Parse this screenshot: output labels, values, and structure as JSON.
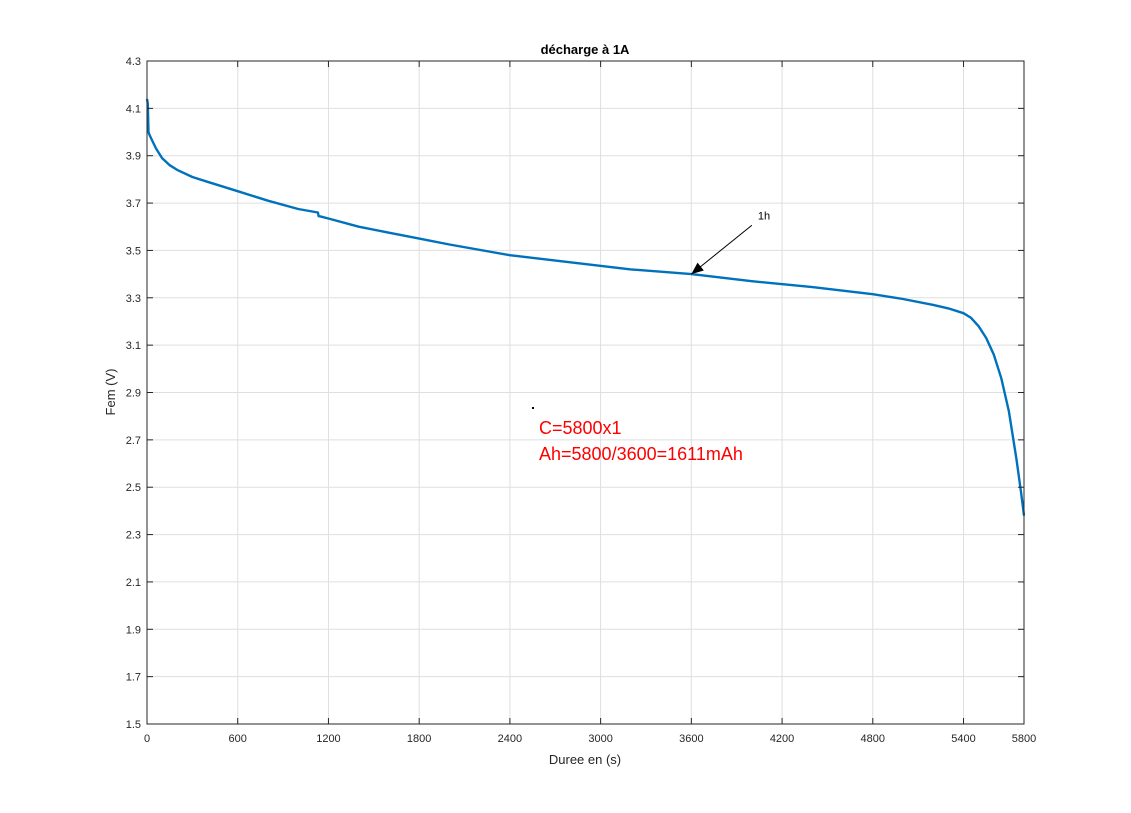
{
  "chart_data": {
    "type": "line",
    "title": "décharge à 1A",
    "xlabel": "Duree en (s)",
    "ylabel": "Fem (V)",
    "xlim": [
      0,
      5800
    ],
    "ylim": [
      1.5,
      4.3
    ],
    "xticks": [
      0,
      600,
      1200,
      1800,
      2400,
      3000,
      3600,
      4200,
      4800,
      5400,
      5800
    ],
    "yticks": [
      1.5,
      1.7,
      1.9,
      2.1,
      2.3,
      2.5,
      2.7,
      2.9,
      3.1,
      3.3,
      3.5,
      3.7,
      3.9,
      4.1,
      4.3
    ],
    "grid": true,
    "series": [
      {
        "color": "#0072bd",
        "x": [
          0,
          5,
          10,
          15,
          30,
          60,
          100,
          150,
          200,
          300,
          400,
          600,
          800,
          1000,
          1130,
          1135,
          1150,
          1200,
          1400,
          1600,
          1800,
          2000,
          2400,
          2800,
          3200,
          3600,
          4000,
          4400,
          4800,
          5000,
          5200,
          5300,
          5400,
          5450,
          5500,
          5550,
          5600,
          5650,
          5700,
          5750,
          5780,
          5800
        ],
        "y": [
          4.14,
          4.12,
          4.0,
          3.99,
          3.97,
          3.93,
          3.89,
          3.86,
          3.84,
          3.81,
          3.79,
          3.75,
          3.71,
          3.675,
          3.66,
          3.645,
          3.643,
          3.635,
          3.6,
          3.575,
          3.55,
          3.525,
          3.48,
          3.45,
          3.42,
          3.4,
          3.37,
          3.345,
          3.315,
          3.295,
          3.27,
          3.255,
          3.235,
          3.215,
          3.18,
          3.13,
          3.06,
          2.96,
          2.82,
          2.62,
          2.48,
          2.38
        ]
      }
    ],
    "annotations": [
      {
        "text": "1h",
        "at": [
          3600,
          3.4
        ],
        "text_pos": [
          4040,
          3.64
        ]
      },
      {
        "text": "C=5800x1",
        "color": "#ff0000"
      },
      {
        "text": "Ah=5800/3600=1611mAh",
        "color": "#ff0000"
      }
    ]
  }
}
